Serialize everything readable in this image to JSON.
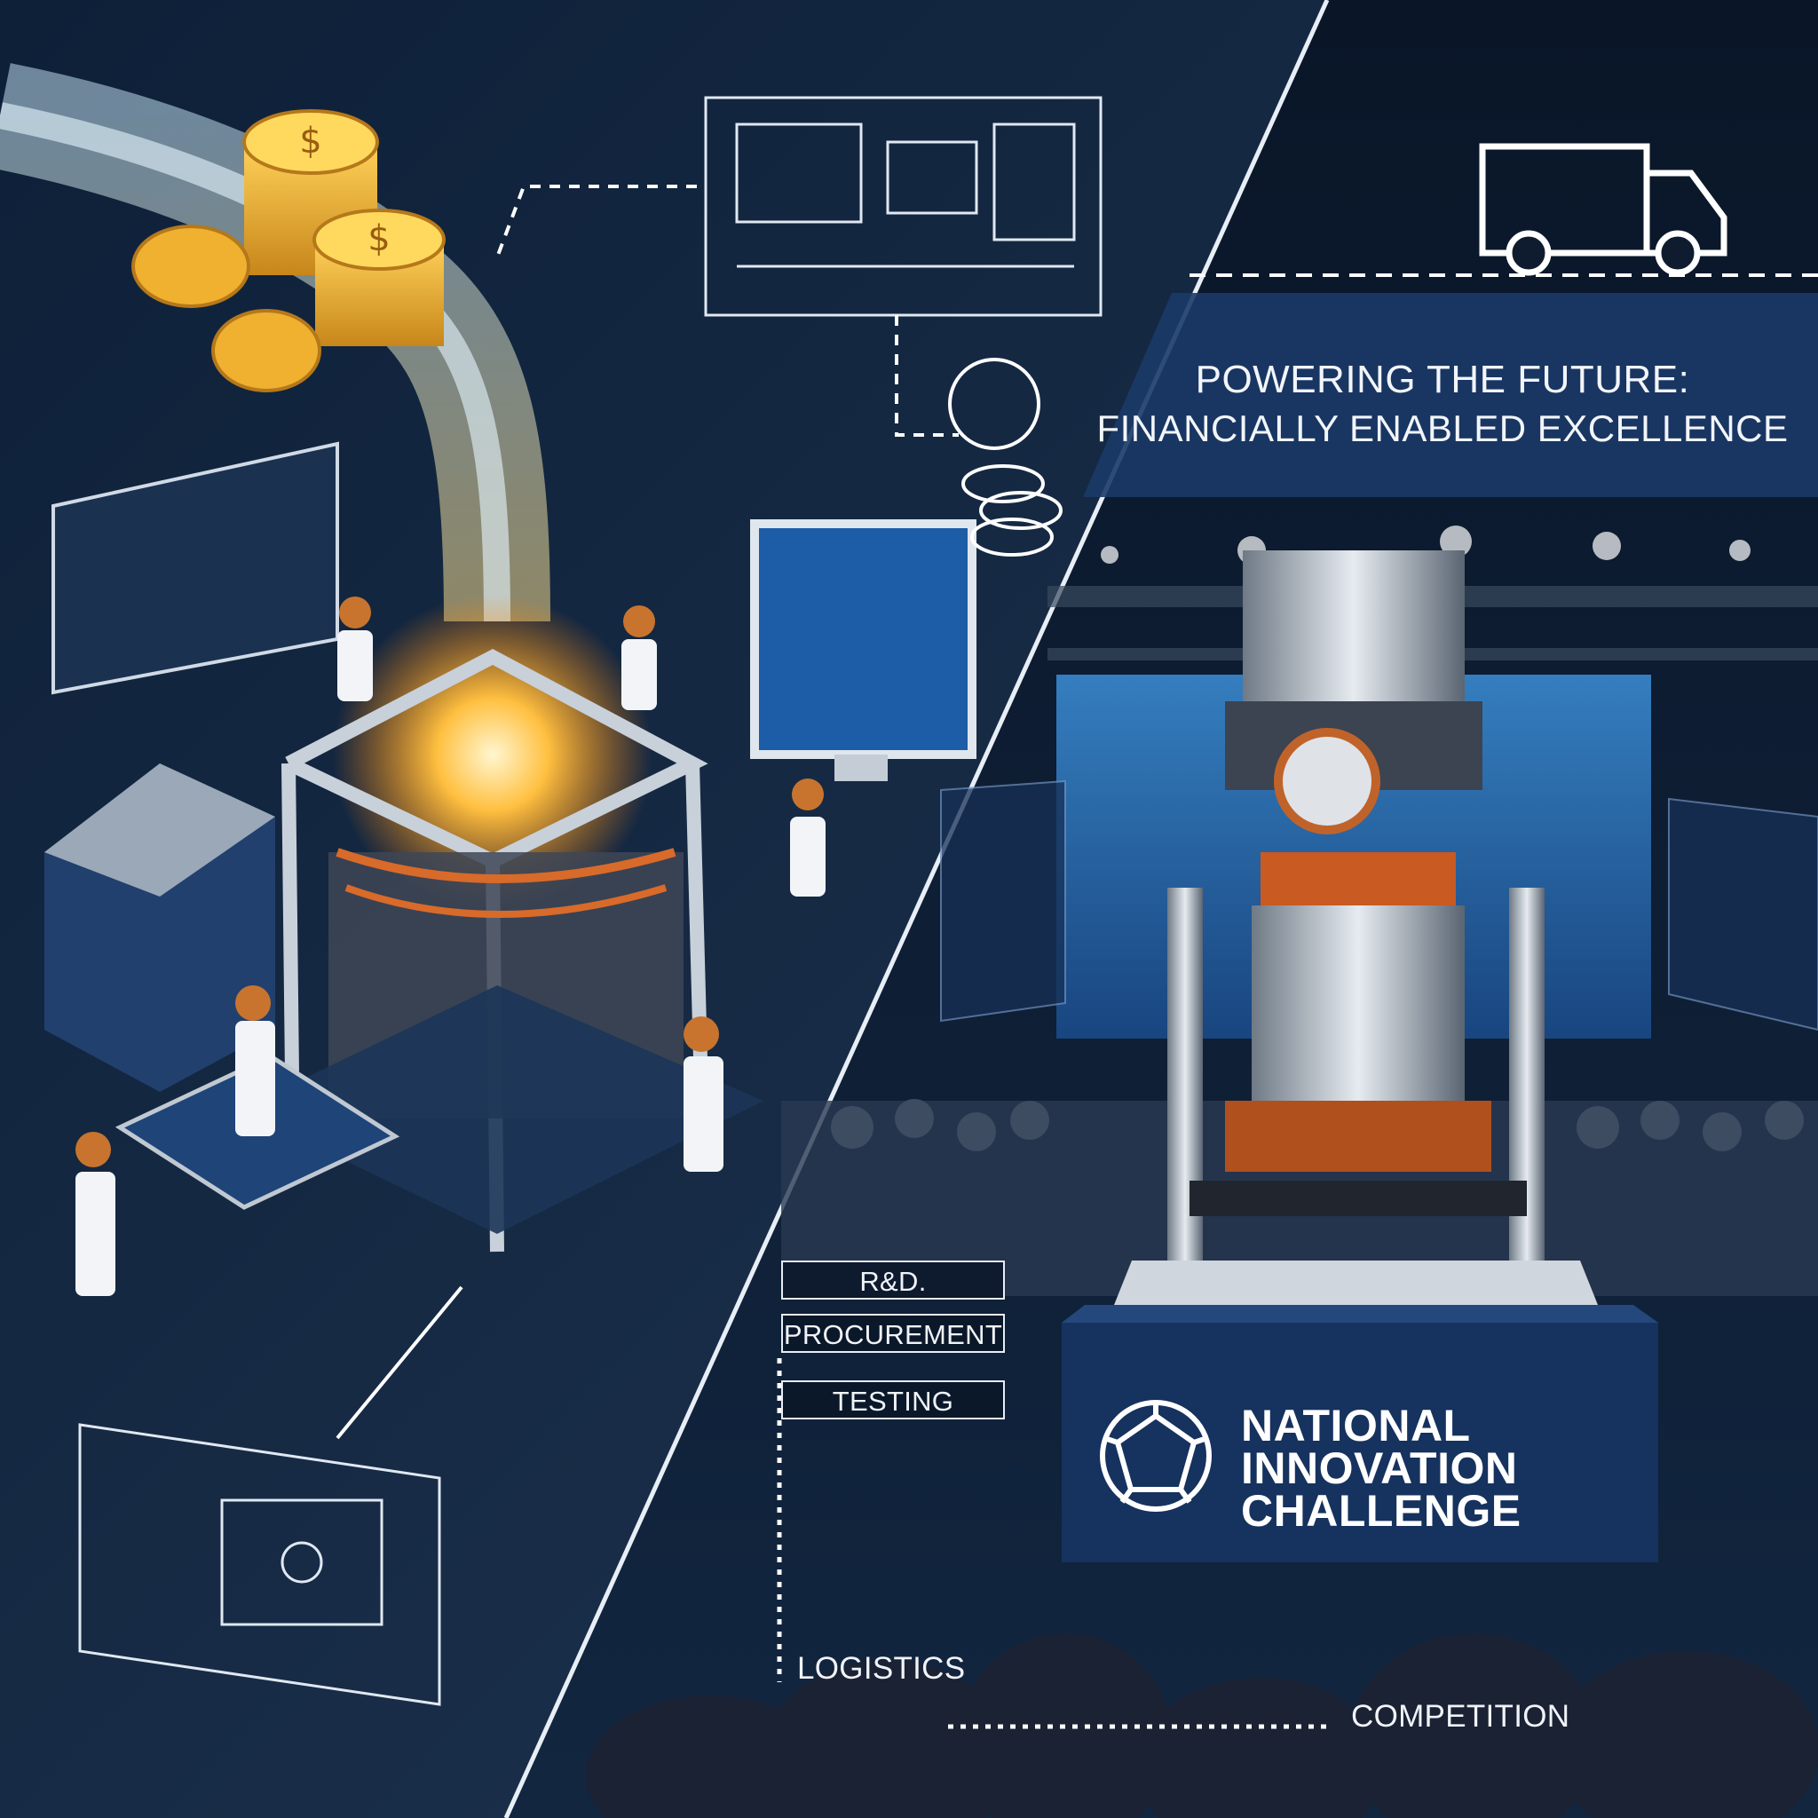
{
  "headline": {
    "line1": "POWERING THE FUTURE:",
    "line2": "FINANCIALLY ENABLED EXCELLENCE"
  },
  "stages": [
    "R&D.",
    "PROCUREMENT",
    "TESTING"
  ],
  "flow": {
    "logistics": "LOGISTICS",
    "competition": "COMPETITION"
  },
  "event": {
    "line1": "NATIONAL",
    "line2": "INNOVATION",
    "line3": "CHALLENGE"
  },
  "icons": {
    "coins": "coin-stack-icon",
    "truck": "delivery-truck-icon",
    "emblem": "geodesic-emblem-icon"
  },
  "colors": {
    "background": "#0d1a2e",
    "accent_gold": "#f0b030",
    "accent_orange": "#d86a2a",
    "stream_blue": "#7fd0ff",
    "panel_blue": "#1c3a6e",
    "text": "#f2f5fa"
  }
}
